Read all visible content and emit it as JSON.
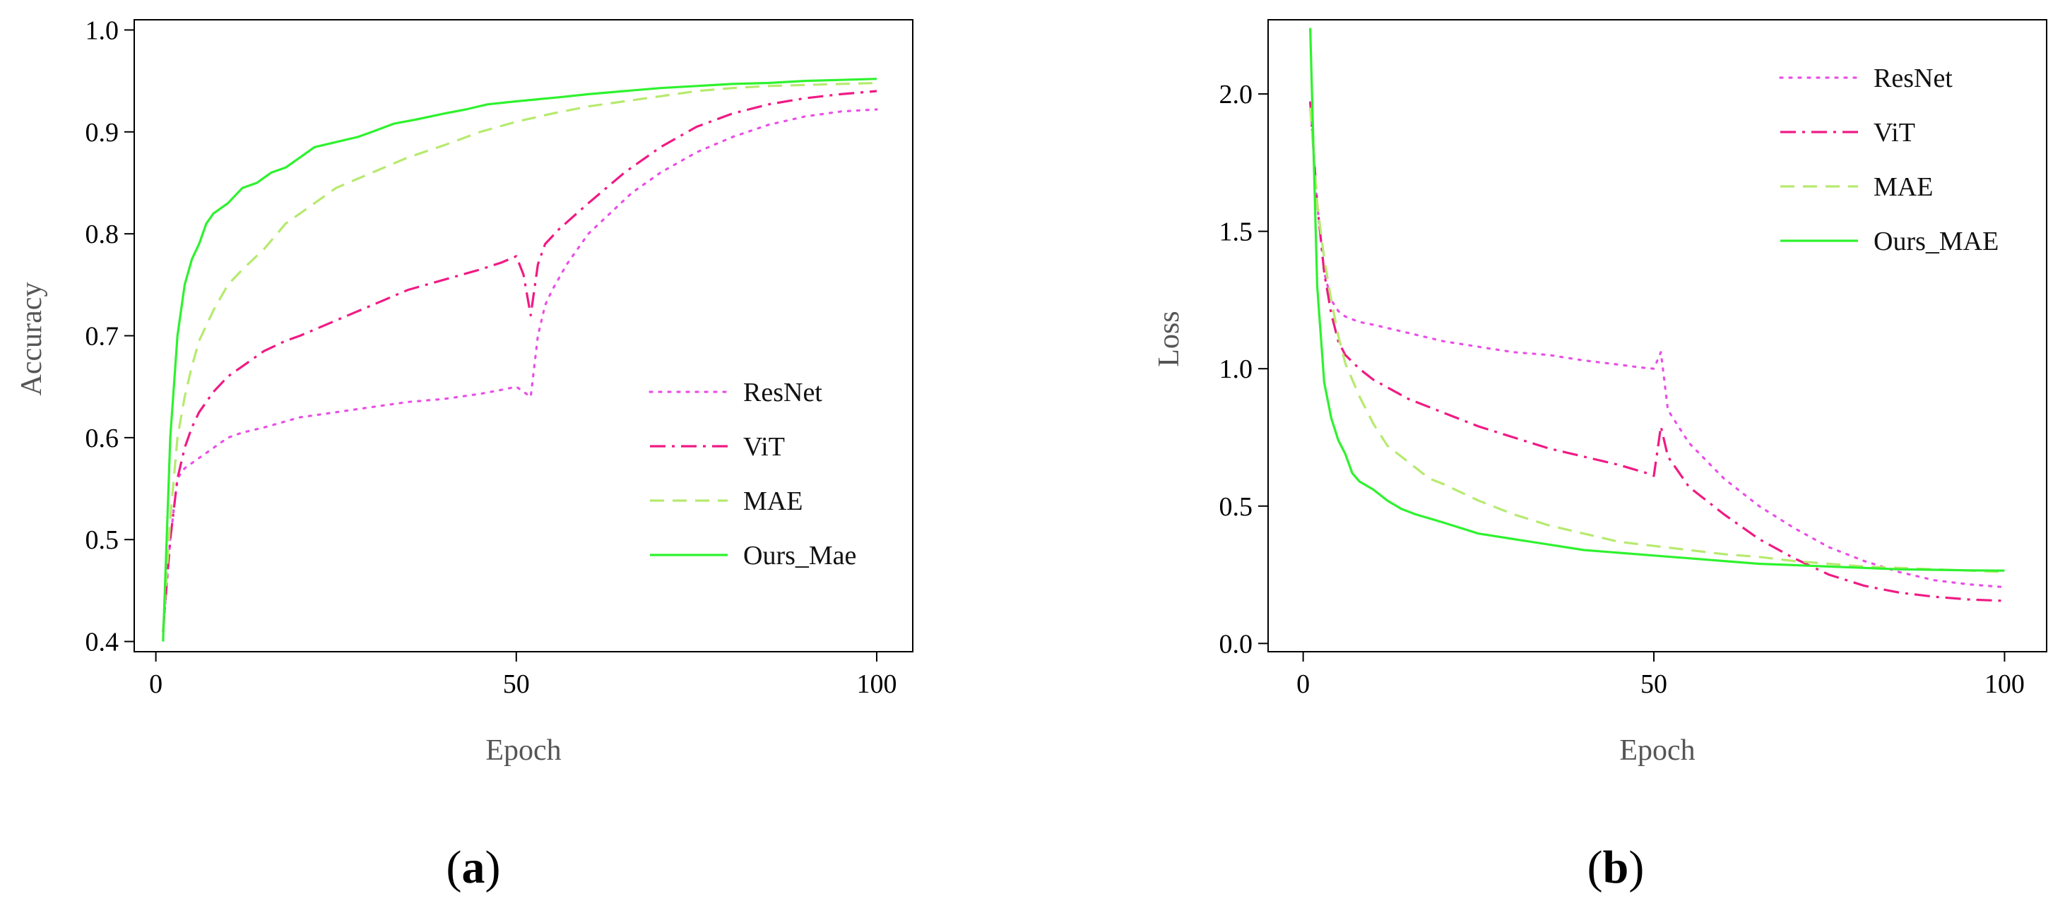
{
  "chart_data": [
    {
      "id": "a",
      "type": "line",
      "caption_letter": "a",
      "xlabel": "Epoch",
      "ylabel": "Accuracy",
      "xlim": [
        -3,
        105
      ],
      "ylim": [
        0.39,
        1.01
      ],
      "xticks": [
        0,
        50,
        100
      ],
      "xtick_labels": [
        "0",
        "50",
        "100"
      ],
      "yticks": [
        0.4,
        0.5,
        0.6,
        0.7,
        0.8,
        0.9,
        1.0
      ],
      "ytick_labels": [
        "0.4",
        "0.5",
        "0.6",
        "0.7",
        "0.8",
        "0.9",
        "1.0"
      ],
      "legend_position": "lower-right",
      "series": [
        {
          "name": "ResNet",
          "color": "#e94fe6",
          "style": "dotted",
          "points": [
            [
              1,
              0.41
            ],
            [
              2,
              0.5
            ],
            [
              3,
              0.56
            ],
            [
              4,
              0.57
            ],
            [
              5,
              0.575
            ],
            [
              6,
              0.58
            ],
            [
              8,
              0.59
            ],
            [
              10,
              0.6
            ],
            [
              12,
              0.605
            ],
            [
              15,
              0.61
            ],
            [
              20,
              0.62
            ],
            [
              25,
              0.625
            ],
            [
              30,
              0.63
            ],
            [
              35,
              0.635
            ],
            [
              40,
              0.638
            ],
            [
              45,
              0.643
            ],
            [
              48,
              0.647
            ],
            [
              50,
              0.65
            ],
            [
              51,
              0.645
            ],
            [
              52,
              0.64
            ],
            [
              53,
              0.7
            ],
            [
              54,
              0.73
            ],
            [
              55,
              0.745
            ],
            [
              57,
              0.77
            ],
            [
              60,
              0.8
            ],
            [
              63,
              0.82
            ],
            [
              66,
              0.84
            ],
            [
              70,
              0.86
            ],
            [
              75,
              0.88
            ],
            [
              80,
              0.895
            ],
            [
              85,
              0.907
            ],
            [
              90,
              0.915
            ],
            [
              95,
              0.92
            ],
            [
              100,
              0.922
            ]
          ]
        },
        {
          "name": "ViT",
          "color": "#f01a84",
          "style": "dashdot",
          "points": [
            [
              1,
              0.41
            ],
            [
              2,
              0.5
            ],
            [
              3,
              0.56
            ],
            [
              4,
              0.59
            ],
            [
              5,
              0.61
            ],
            [
              6,
              0.625
            ],
            [
              8,
              0.645
            ],
            [
              10,
              0.66
            ],
            [
              12,
              0.67
            ],
            [
              15,
              0.685
            ],
            [
              18,
              0.695
            ],
            [
              20,
              0.7
            ],
            [
              25,
              0.715
            ],
            [
              30,
              0.73
            ],
            [
              35,
              0.745
            ],
            [
              40,
              0.755
            ],
            [
              45,
              0.765
            ],
            [
              48,
              0.772
            ],
            [
              50,
              0.778
            ],
            [
              51,
              0.76
            ],
            [
              52,
              0.72
            ],
            [
              53,
              0.77
            ],
            [
              54,
              0.79
            ],
            [
              56,
              0.805
            ],
            [
              60,
              0.83
            ],
            [
              65,
              0.86
            ],
            [
              70,
              0.885
            ],
            [
              75,
              0.905
            ],
            [
              80,
              0.918
            ],
            [
              85,
              0.927
            ],
            [
              90,
              0.933
            ],
            [
              95,
              0.937
            ],
            [
              100,
              0.94
            ]
          ]
        },
        {
          "name": "MAE",
          "color": "#b6ea6e",
          "style": "dashed",
          "points": [
            [
              1,
              0.41
            ],
            [
              2,
              0.52
            ],
            [
              3,
              0.6
            ],
            [
              4,
              0.64
            ],
            [
              5,
              0.67
            ],
            [
              6,
              0.695
            ],
            [
              8,
              0.725
            ],
            [
              10,
              0.75
            ],
            [
              12,
              0.765
            ],
            [
              15,
              0.785
            ],
            [
              18,
              0.81
            ],
            [
              20,
              0.82
            ],
            [
              25,
              0.845
            ],
            [
              30,
              0.86
            ],
            [
              35,
              0.875
            ],
            [
              40,
              0.887
            ],
            [
              45,
              0.9
            ],
            [
              50,
              0.91
            ],
            [
              55,
              0.918
            ],
            [
              60,
              0.925
            ],
            [
              65,
              0.93
            ],
            [
              70,
              0.935
            ],
            [
              75,
              0.94
            ],
            [
              80,
              0.943
            ],
            [
              85,
              0.945
            ],
            [
              90,
              0.946
            ],
            [
              95,
              0.947
            ],
            [
              100,
              0.948
            ]
          ]
        },
        {
          "name": "Ours_Mae",
          "color": "#2ef22e",
          "style": "solid",
          "points": [
            [
              1,
              0.4
            ],
            [
              2,
              0.6
            ],
            [
              3,
              0.7
            ],
            [
              4,
              0.75
            ],
            [
              5,
              0.775
            ],
            [
              6,
              0.79
            ],
            [
              7,
              0.81
            ],
            [
              8,
              0.82
            ],
            [
              10,
              0.83
            ],
            [
              12,
              0.845
            ],
            [
              14,
              0.85
            ],
            [
              16,
              0.86
            ],
            [
              18,
              0.865
            ],
            [
              20,
              0.875
            ],
            [
              22,
              0.885
            ],
            [
              25,
              0.89
            ],
            [
              28,
              0.895
            ],
            [
              30,
              0.9
            ],
            [
              33,
              0.908
            ],
            [
              36,
              0.912
            ],
            [
              40,
              0.918
            ],
            [
              43,
              0.922
            ],
            [
              46,
              0.927
            ],
            [
              50,
              0.93
            ],
            [
              53,
              0.932
            ],
            [
              56,
              0.934
            ],
            [
              60,
              0.937
            ],
            [
              65,
              0.94
            ],
            [
              70,
              0.943
            ],
            [
              75,
              0.945
            ],
            [
              80,
              0.947
            ],
            [
              85,
              0.948
            ],
            [
              90,
              0.95
            ],
            [
              95,
              0.951
            ],
            [
              100,
              0.952
            ]
          ]
        }
      ]
    },
    {
      "id": "b",
      "type": "line",
      "caption_letter": "b",
      "xlabel": "Epoch",
      "ylabel": "Loss",
      "xlim": [
        -5,
        106
      ],
      "ylim": [
        -0.03,
        2.27
      ],
      "xticks": [
        0,
        50,
        100
      ],
      "xtick_labels": [
        "0",
        "50",
        "100"
      ],
      "yticks": [
        0.0,
        0.5,
        1.0,
        1.5,
        2.0
      ],
      "ytick_labels": [
        "0.0",
        "0.5",
        "1.0",
        "1.5",
        "2.0"
      ],
      "legend_position": "top-right",
      "series": [
        {
          "name": "ResNet",
          "color": "#e94fe6",
          "style": "dotted",
          "points": [
            [
              1,
              1.97
            ],
            [
              2,
              1.6
            ],
            [
              3,
              1.35
            ],
            [
              4,
              1.25
            ],
            [
              5,
              1.21
            ],
            [
              6,
              1.19
            ],
            [
              8,
              1.17
            ],
            [
              10,
              1.16
            ],
            [
              15,
              1.13
            ],
            [
              20,
              1.1
            ],
            [
              25,
              1.08
            ],
            [
              30,
              1.06
            ],
            [
              35,
              1.05
            ],
            [
              40,
              1.03
            ],
            [
              45,
              1.015
            ],
            [
              48,
              1.005
            ],
            [
              50,
              1.0
            ],
            [
              51,
              1.06
            ],
            [
              52,
              0.85
            ],
            [
              55,
              0.73
            ],
            [
              60,
              0.6
            ],
            [
              65,
              0.5
            ],
            [
              70,
              0.42
            ],
            [
              75,
              0.35
            ],
            [
              80,
              0.3
            ],
            [
              85,
              0.26
            ],
            [
              90,
              0.23
            ],
            [
              95,
              0.215
            ],
            [
              100,
              0.205
            ]
          ]
        },
        {
          "name": "ViT",
          "color": "#f01a84",
          "style": "dashdot",
          "points": [
            [
              1,
              1.97
            ],
            [
              2,
              1.6
            ],
            [
              3,
              1.35
            ],
            [
              4,
              1.2
            ],
            [
              5,
              1.1
            ],
            [
              6,
              1.05
            ],
            [
              8,
              1.0
            ],
            [
              10,
              0.96
            ],
            [
              15,
              0.89
            ],
            [
              20,
              0.84
            ],
            [
              25,
              0.79
            ],
            [
              30,
              0.75
            ],
            [
              35,
              0.71
            ],
            [
              40,
              0.68
            ],
            [
              45,
              0.65
            ],
            [
              49,
              0.62
            ],
            [
              50,
              0.61
            ],
            [
              51,
              0.79
            ],
            [
              52,
              0.68
            ],
            [
              55,
              0.57
            ],
            [
              60,
              0.47
            ],
            [
              65,
              0.38
            ],
            [
              70,
              0.31
            ],
            [
              75,
              0.25
            ],
            [
              80,
              0.21
            ],
            [
              85,
              0.185
            ],
            [
              90,
              0.17
            ],
            [
              95,
              0.16
            ],
            [
              100,
              0.155
            ]
          ]
        },
        {
          "name": "MAE",
          "color": "#b6ea6e",
          "style": "dashed",
          "points": [
            [
              1,
              1.95
            ],
            [
              2,
              1.6
            ],
            [
              3,
              1.4
            ],
            [
              4,
              1.25
            ],
            [
              5,
              1.12
            ],
            [
              6,
              1.02
            ],
            [
              8,
              0.9
            ],
            [
              10,
              0.8
            ],
            [
              12,
              0.72
            ],
            [
              15,
              0.66
            ],
            [
              18,
              0.6
            ],
            [
              20,
              0.58
            ],
            [
              25,
              0.52
            ],
            [
              30,
              0.47
            ],
            [
              35,
              0.43
            ],
            [
              40,
              0.4
            ],
            [
              45,
              0.37
            ],
            [
              50,
              0.355
            ],
            [
              55,
              0.34
            ],
            [
              60,
              0.325
            ],
            [
              65,
              0.315
            ],
            [
              70,
              0.3
            ],
            [
              75,
              0.29
            ],
            [
              80,
              0.28
            ],
            [
              85,
              0.275
            ],
            [
              90,
              0.27
            ],
            [
              95,
              0.265
            ],
            [
              100,
              0.26
            ]
          ]
        },
        {
          "name": "Ours_MAE",
          "color": "#2ef22e",
          "style": "solid",
          "points": [
            [
              1,
              2.24
            ],
            [
              2,
              1.3
            ],
            [
              3,
              0.95
            ],
            [
              4,
              0.82
            ],
            [
              5,
              0.74
            ],
            [
              6,
              0.69
            ],
            [
              7,
              0.62
            ],
            [
              8,
              0.59
            ],
            [
              10,
              0.56
            ],
            [
              12,
              0.52
            ],
            [
              14,
              0.49
            ],
            [
              16,
              0.47
            ],
            [
              20,
              0.44
            ],
            [
              25,
              0.4
            ],
            [
              30,
              0.38
            ],
            [
              35,
              0.36
            ],
            [
              40,
              0.34
            ],
            [
              45,
              0.33
            ],
            [
              50,
              0.32
            ],
            [
              55,
              0.31
            ],
            [
              60,
              0.3
            ],
            [
              65,
              0.29
            ],
            [
              70,
              0.285
            ],
            [
              75,
              0.28
            ],
            [
              80,
              0.275
            ],
            [
              85,
              0.27
            ],
            [
              90,
              0.268
            ],
            [
              95,
              0.266
            ],
            [
              100,
              0.265
            ]
          ]
        }
      ]
    }
  ]
}
